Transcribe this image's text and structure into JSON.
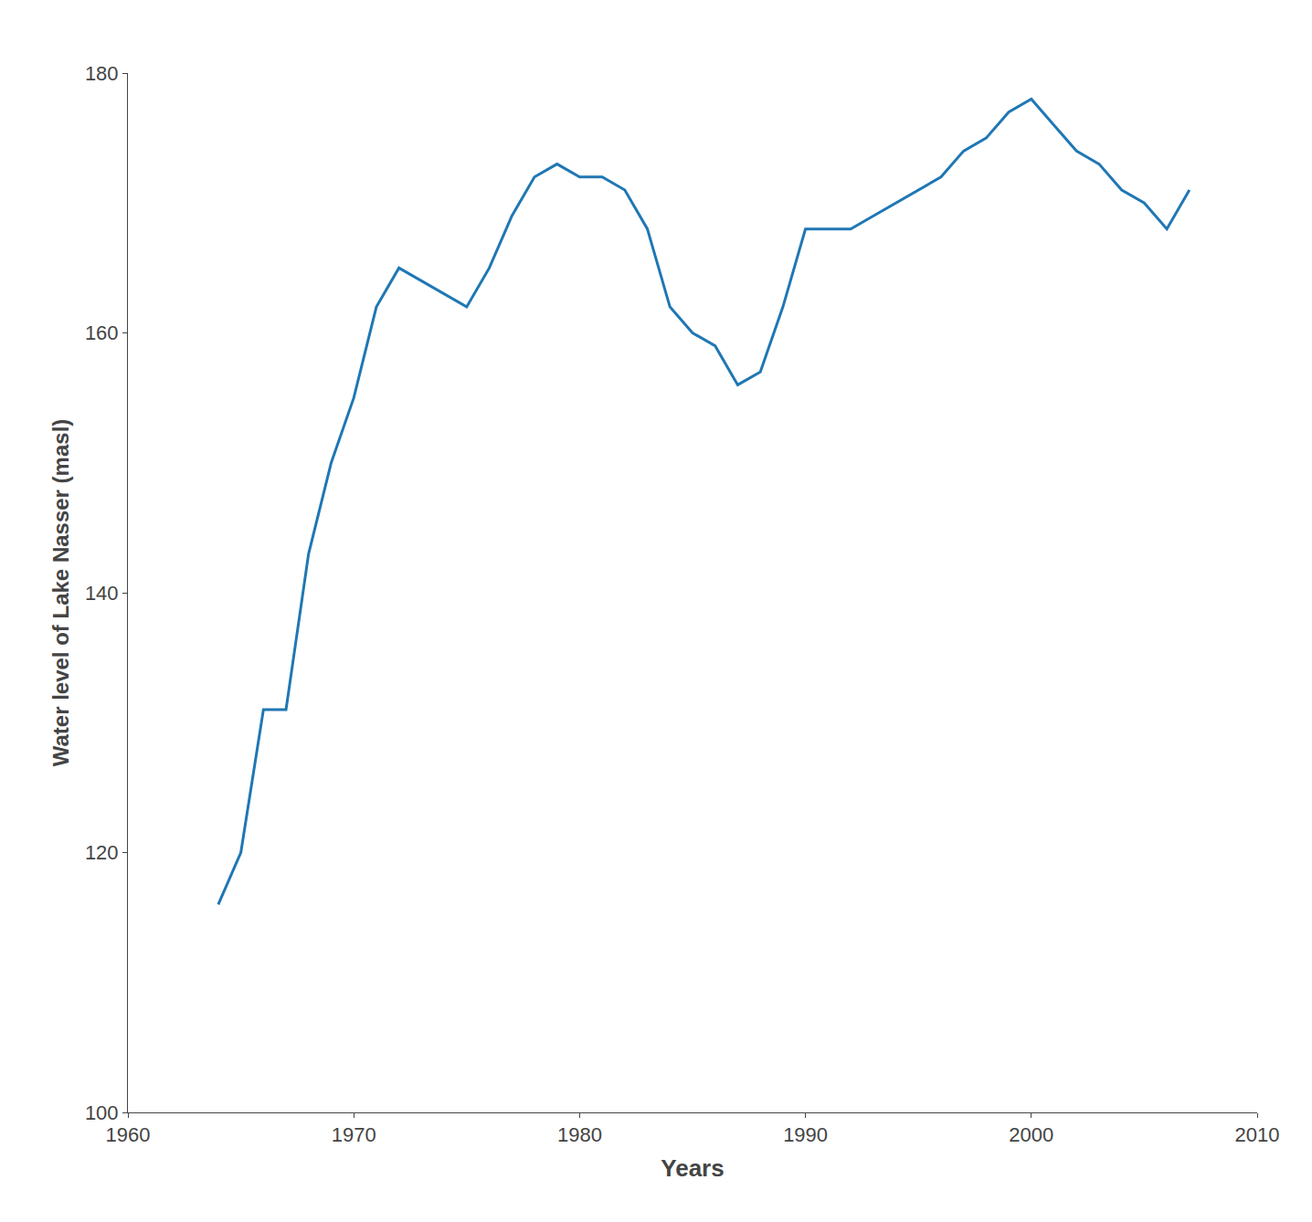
{
  "chart_data": {
    "type": "line",
    "x": [
      1964,
      1965,
      1966,
      1967,
      1968,
      1969,
      1970,
      1971,
      1972,
      1973,
      1974,
      1975,
      1976,
      1977,
      1978,
      1979,
      1980,
      1981,
      1982,
      1983,
      1984,
      1985,
      1986,
      1987,
      1988,
      1989,
      1990,
      1991,
      1992,
      1993,
      1994,
      1995,
      1996,
      1997,
      1998,
      1999,
      2000,
      2001,
      2002,
      2003,
      2004,
      2005,
      2006,
      2007
    ],
    "values": [
      116,
      120,
      131,
      131,
      143,
      150,
      155,
      162,
      165,
      164,
      163,
      162,
      165,
      169,
      172,
      173,
      172,
      172,
      171,
      168,
      162,
      160,
      159,
      156,
      157,
      162,
      168,
      168,
      168,
      169,
      170,
      171,
      172,
      174,
      175,
      177,
      178,
      176,
      174,
      173,
      171,
      170,
      168,
      171
    ],
    "xlabel": "Years",
    "ylabel": "Water level of Lake Nasser (masl)",
    "xlim": [
      1960,
      2010
    ],
    "ylim": [
      100,
      180
    ],
    "xticks": [
      1960,
      1970,
      1980,
      1990,
      2000,
      2010
    ],
    "yticks": [
      100,
      120,
      140,
      160,
      180
    ],
    "grid": false
  }
}
